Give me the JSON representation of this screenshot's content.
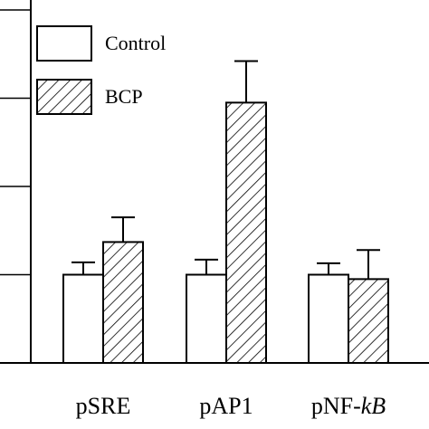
{
  "chart_data": {
    "type": "bar",
    "categories": [
      "pSRE",
      "pAP1",
      "pNF-kB"
    ],
    "category_label_parts": [
      [
        {
          "text": "pSRE",
          "italic": false
        }
      ],
      [
        {
          "text": "pAP1",
          "italic": false
        }
      ],
      [
        {
          "text": "pNF-",
          "italic": false
        },
        {
          "text": "kB",
          "italic": true
        }
      ]
    ],
    "series": [
      {
        "name": "Control",
        "values": [
          1.0,
          1.0,
          1.0
        ],
        "errors": [
          0.14,
          0.17,
          0.13
        ],
        "fill": "plain",
        "color": "#ffffff"
      },
      {
        "name": "BCP",
        "values": [
          1.37,
          2.95,
          0.95
        ],
        "errors": [
          0.28,
          0.47,
          0.33
        ],
        "fill": "hatch",
        "color": "#ffffff"
      }
    ],
    "ylim": [
      0,
      4.1
    ],
    "yticks": [
      0,
      1,
      2,
      3,
      4
    ],
    "ytick_labels_shown": false,
    "title": "",
    "xlabel": "",
    "ylabel": "",
    "grid": false,
    "legend_position": "top-left",
    "stroke_color": "#000000",
    "background": "#ffffff"
  }
}
